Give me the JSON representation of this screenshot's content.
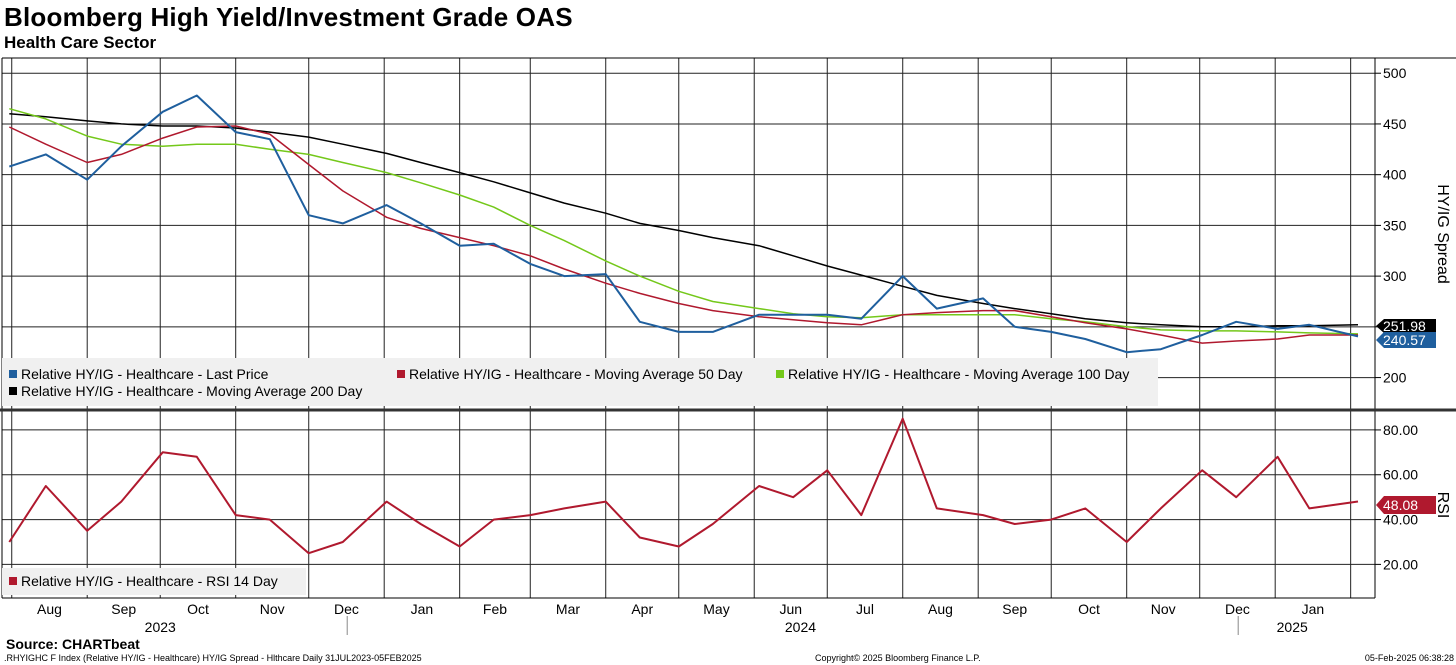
{
  "header": {
    "title": "Bloomberg High Yield/Investment Grade OAS",
    "subtitle": "Health Care Sector"
  },
  "footer": {
    "source": "Source: CHARTbeat",
    "ticker_info": ".RHYIGHC F Index (Relative HY/IG - Healthcare) HY/IG Spread - Hlthcare  Daily 31JUL2023-05FEB2025",
    "copyright": "Copyright© 2025 Bloomberg Finance L.P.",
    "timestamp": "05-Feb-2025 06:38:28"
  },
  "colors": {
    "last_price": "#1f5f9e",
    "ma50": "#b0192e",
    "ma100": "#74c81a",
    "ma200": "#000000",
    "rsi": "#b0192e"
  },
  "chart_data": [
    {
      "type": "line",
      "ylabel": "HY/IG Spread",
      "ylim": [
        170,
        515
      ],
      "yticks": [
        "500",
        "450",
        "400",
        "350",
        "300",
        "250",
        "200"
      ],
      "months": [
        "Aug",
        "Sep",
        "Oct",
        "Nov",
        "Dec",
        "Jan",
        "Feb",
        "Mar",
        "Apr",
        "May",
        "Jun",
        "Jul",
        "Aug",
        "Sep",
        "Oct",
        "Nov",
        "Dec",
        "Jan"
      ],
      "years": [
        "2023",
        "2024",
        "2025"
      ],
      "x": [
        "2023-07-31",
        "2023-08-15",
        "2023-09-01",
        "2023-09-15",
        "2023-10-02",
        "2023-10-16",
        "2023-11-01",
        "2023-11-15",
        "2023-12-01",
        "2023-12-15",
        "2024-01-02",
        "2024-01-16",
        "2024-02-01",
        "2024-02-15",
        "2024-03-01",
        "2024-03-15",
        "2024-04-01",
        "2024-04-15",
        "2024-05-01",
        "2024-05-15",
        "2024-06-03",
        "2024-06-17",
        "2024-07-01",
        "2024-07-15",
        "2024-08-01",
        "2024-08-15",
        "2024-09-03",
        "2024-09-16",
        "2024-10-01",
        "2024-10-15",
        "2024-11-01",
        "2024-11-15",
        "2024-12-02",
        "2024-12-16",
        "2025-01-02",
        "2025-01-15",
        "2025-02-04"
      ],
      "series": [
        {
          "name": "Relative HY/IG - Healthcare - Last Price",
          "values": [
            408,
            420,
            395,
            428,
            462,
            478,
            442,
            435,
            360,
            352,
            370,
            352,
            330,
            332,
            312,
            300,
            302,
            255,
            245,
            245,
            262,
            262,
            262,
            258,
            300,
            268,
            278,
            250,
            245,
            238,
            225,
            228,
            242,
            255,
            248,
            252,
            240.57
          ]
        },
        {
          "name": "Relative HY/IG - Healthcare - Moving Average 50 Day",
          "values": [
            447,
            430,
            412,
            420,
            436,
            447,
            448,
            440,
            410,
            384,
            358,
            347,
            338,
            330,
            320,
            307,
            293,
            283,
            273,
            266,
            260,
            257,
            254,
            252,
            262,
            264,
            266,
            266,
            260,
            254,
            248,
            242,
            234,
            236,
            238,
            242,
            242
          ]
        },
        {
          "name": "Relative HY/IG - Healthcare - Moving Average 100 Day",
          "values": [
            465,
            455,
            438,
            430,
            428,
            430,
            430,
            425,
            420,
            412,
            402,
            392,
            380,
            368,
            350,
            335,
            315,
            300,
            285,
            275,
            268,
            263,
            260,
            259,
            262,
            262,
            262,
            262,
            258,
            255,
            250,
            247,
            246,
            246,
            245,
            244,
            243
          ]
        },
        {
          "name": "Relative HY/IG - Healthcare - Moving Average 200 Day",
          "values": [
            460,
            457,
            453,
            450,
            448,
            448,
            446,
            442,
            437,
            430,
            421,
            412,
            402,
            393,
            382,
            372,
            362,
            352,
            345,
            338,
            330,
            320,
            310,
            301,
            290,
            281,
            273,
            268,
            263,
            258,
            254,
            252,
            250,
            250,
            251,
            251,
            251.98
          ]
        }
      ],
      "last_labels": {
        "ma200": "251.98",
        "last_price": "240.57"
      }
    },
    {
      "type": "line",
      "ylabel": "RSI",
      "ylim": [
        5,
        88
      ],
      "yticks": [
        "80.00",
        "60.00",
        "40.00",
        "20.00"
      ],
      "x": [
        "2023-07-31",
        "2023-08-15",
        "2023-09-01",
        "2023-09-15",
        "2023-10-02",
        "2023-10-16",
        "2023-11-01",
        "2023-11-15",
        "2023-12-01",
        "2023-12-15",
        "2024-01-02",
        "2024-01-16",
        "2024-02-01",
        "2024-02-15",
        "2024-03-01",
        "2024-03-15",
        "2024-04-01",
        "2024-04-15",
        "2024-05-01",
        "2024-05-15",
        "2024-06-03",
        "2024-06-17",
        "2024-07-01",
        "2024-07-15",
        "2024-08-01",
        "2024-08-15",
        "2024-09-03",
        "2024-09-16",
        "2024-10-01",
        "2024-10-15",
        "2024-11-01",
        "2024-11-15",
        "2024-12-02",
        "2024-12-16",
        "2025-01-02",
        "2025-01-15",
        "2025-02-04"
      ],
      "series": [
        {
          "name": "Relative HY/IG - Healthcare - RSI 14 Day",
          "values": [
            30,
            55,
            35,
            48,
            70,
            68,
            42,
            40,
            25,
            30,
            48,
            38,
            28,
            40,
            42,
            45,
            48,
            32,
            28,
            38,
            55,
            50,
            62,
            42,
            85,
            45,
            42,
            38,
            40,
            45,
            30,
            45,
            62,
            50,
            68,
            45,
            48.08
          ]
        }
      ],
      "last_label": "48.08"
    }
  ]
}
